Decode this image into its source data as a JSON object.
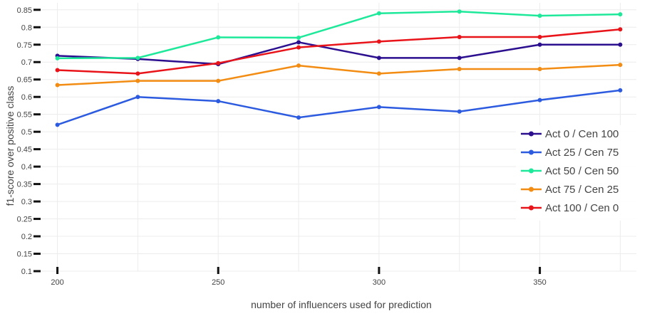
{
  "chart_data": {
    "type": "line",
    "title": "",
    "xlabel": "number of influencers used for prediction",
    "ylabel": "f1-score over positive class",
    "x": [
      200,
      225,
      250,
      275,
      300,
      325,
      350,
      375
    ],
    "xlim": [
      195,
      380
    ],
    "xticks": [
      200,
      250,
      300,
      350
    ],
    "ylim": [
      0.1,
      0.87
    ],
    "yticks": [
      "0.1",
      "0.15",
      "0.2",
      "0.25",
      "0.3",
      "0.35",
      "0.4",
      "0.45",
      "0.5",
      "0.55",
      "0.6",
      "0.65",
      "0.7",
      "0.75",
      "0.8",
      "0.85"
    ],
    "grid": true,
    "legend_position": "right",
    "series": [
      {
        "name": "Act 0 / Cen 100",
        "color": "#2b0f8f",
        "values": [
          0.718,
          0.709,
          0.694,
          0.757,
          0.712,
          0.712,
          0.75,
          0.75
        ]
      },
      {
        "name": "Act 25 / Cen 75",
        "color": "#2d5be0",
        "values": [
          0.52,
          0.6,
          0.588,
          0.541,
          0.571,
          0.558,
          0.591,
          0.619
        ]
      },
      {
        "name": "Act 50 / Cen 50",
        "color": "#1ee89a",
        "values": [
          0.711,
          0.712,
          0.771,
          0.77,
          0.84,
          0.845,
          0.833,
          0.837
        ]
      },
      {
        "name": "Act 75 / Cen 25",
        "color": "#f28c12",
        "values": [
          0.634,
          0.646,
          0.646,
          0.69,
          0.667,
          0.68,
          0.68,
          0.692
        ]
      },
      {
        "name": "Act 100 / Cen 0",
        "color": "#e8141a",
        "values": [
          0.677,
          0.667,
          0.697,
          0.742,
          0.759,
          0.772,
          0.772,
          0.794
        ]
      }
    ]
  }
}
